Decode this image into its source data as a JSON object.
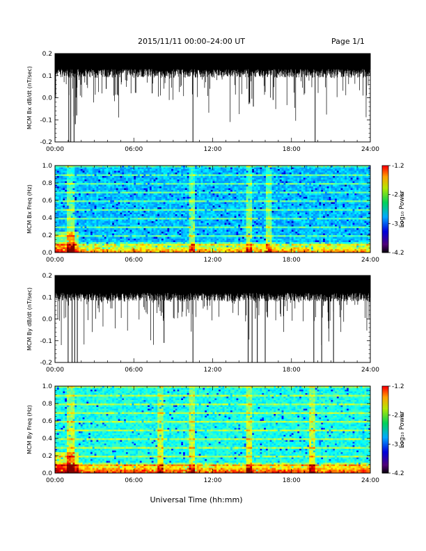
{
  "header": {
    "date_range": "2015/11/11   00:00–24:00 UT",
    "page": "Page 1/1"
  },
  "x_axis": {
    "label": "Universal Time (hh:mm)",
    "ticks": [
      "00:00",
      "06:00",
      "12:00",
      "18:00",
      "24:00"
    ]
  },
  "colorbar": {
    "label": "Log₁₀ Power",
    "ticks": [
      "-1.2",
      "-2.2",
      "-3.2",
      "-4.2"
    ],
    "range": [
      -4.2,
      -1.2
    ]
  },
  "chart_data": [
    {
      "type": "line",
      "ylabel": "MCM Bx dB/dt (nT/sec)",
      "xlim": [
        0,
        24
      ],
      "ylim": [
        -0.2,
        0.2
      ],
      "yticks": [
        "0.2",
        "0.1",
        "0.0",
        "-0.1",
        "-0.2"
      ],
      "xticks": [
        "00:00",
        "06:00",
        "12:00",
        "18:00",
        "24:00"
      ],
      "baseline": 0.16,
      "spikes": [
        {
          "x": 1.05,
          "y": -0.2
        },
        {
          "x": 1.2,
          "y": -0.2
        },
        {
          "x": 1.45,
          "y": -0.2
        },
        {
          "x": 1.55,
          "y": -0.12
        },
        {
          "x": 1.65,
          "y": -0.08
        },
        {
          "x": 10.5,
          "y": -0.2
        },
        {
          "x": 14.8,
          "y": -0.02
        },
        {
          "x": 15.1,
          "y": -0.04
        },
        {
          "x": 19.8,
          "y": -0.2
        },
        {
          "x": 16.6,
          "y": -0.01
        },
        {
          "x": 3.9,
          "y": 0.04
        },
        {
          "x": 7.4,
          "y": 0.02
        }
      ]
    },
    {
      "type": "heatmap",
      "ylabel": "MCM Bx Freq (Hz)",
      "xlim": [
        0,
        24
      ],
      "ylim": [
        0,
        1.0
      ],
      "yticks": [
        "1.0",
        "0.8",
        "0.6",
        "0.4",
        "0.2",
        "0.0"
      ],
      "xticks": [
        "00:00",
        "06:00",
        "12:00",
        "18:00",
        "24:00"
      ],
      "colorbar_label": "Log₁₀ Power",
      "colorbar_ticks": [
        "-1.2",
        "-2.2",
        "-3.2",
        "-4.2"
      ],
      "zlim": [
        -4.2,
        -1.2
      ]
    },
    {
      "type": "line",
      "ylabel": "MCM By dB/dt (nT/sec)",
      "xlim": [
        0,
        24
      ],
      "ylim": [
        -0.2,
        0.2
      ],
      "yticks": [
        "0.2",
        "0.1",
        "0.0",
        "-0.1",
        "-0.2"
      ],
      "xticks": [
        "00:00",
        "06:00",
        "12:00",
        "18:00",
        "24:00"
      ],
      "baseline": 0.15,
      "spikes": [
        {
          "x": 1.0,
          "y": -0.2
        },
        {
          "x": 1.3,
          "y": -0.2
        },
        {
          "x": 1.5,
          "y": -0.2
        },
        {
          "x": 1.7,
          "y": -0.2
        },
        {
          "x": 10.5,
          "y": -0.2
        },
        {
          "x": 14.7,
          "y": -0.2
        },
        {
          "x": 15.0,
          "y": -0.2
        },
        {
          "x": 15.4,
          "y": -0.2
        },
        {
          "x": 16.0,
          "y": -0.2
        },
        {
          "x": 19.7,
          "y": -0.2
        },
        {
          "x": 20.3,
          "y": -0.2
        },
        {
          "x": 21.2,
          "y": -0.2
        },
        {
          "x": 8.3,
          "y": -0.11
        }
      ]
    },
    {
      "type": "heatmap",
      "ylabel": "MCM By Freq (Hz)",
      "xlim": [
        0,
        24
      ],
      "ylim": [
        0,
        1.0
      ],
      "yticks": [
        "1.0",
        "0.8",
        "0.6",
        "0.4",
        "0.2",
        "0.0"
      ],
      "xticks": [
        "00:00",
        "06:00",
        "12:00",
        "18:00",
        "24:00"
      ],
      "colorbar_label": "Log₁₀ Power",
      "colorbar_ticks": [
        "-1.2",
        "-2.2",
        "-3.2",
        "-4.2"
      ],
      "zlim": [
        -4.2,
        -1.2
      ]
    }
  ]
}
